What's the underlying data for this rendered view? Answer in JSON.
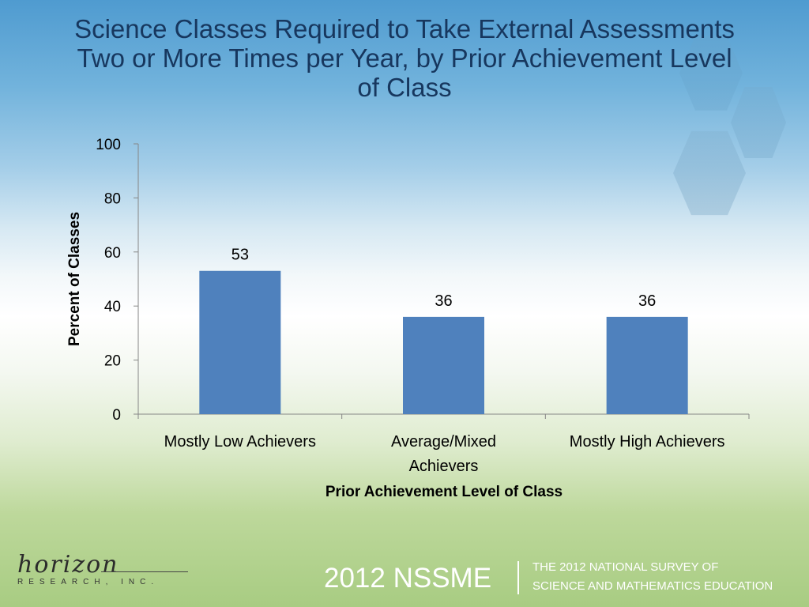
{
  "title_lines": [
    "Science Classes Required to Take External Assessments",
    "Two or More Times per Year, by Prior Achievement Level",
    "of Class"
  ],
  "chart_data": {
    "type": "bar",
    "title": "Science Classes Required to Take External Assessments Two or More Times per Year, by Prior Achievement Level of Class",
    "categories": [
      [
        "Mostly Low Achievers"
      ],
      [
        "Average/Mixed",
        "Achievers"
      ],
      [
        "Mostly High Achievers"
      ]
    ],
    "values": [
      53,
      36,
      36
    ],
    "data_labels": [
      "53",
      "36",
      "36"
    ],
    "xlabel": "Prior Achievement Level of Class",
    "ylabel": "Percent of Classes",
    "ylim": [
      0,
      100
    ],
    "yticks": [
      0,
      20,
      40,
      60,
      80,
      100
    ],
    "grid": false,
    "bar_color": "#4f81bd",
    "axis_color": "#868686"
  },
  "footer": {
    "logo_script": "horizon",
    "logo_sub": "RESEARCH, INC.",
    "nssme": "2012 NSSME",
    "survey_line1": "THE 2012 NATIONAL SURVEY OF",
    "survey_line2": "SCIENCE AND MATHEMATICS EDUCATION"
  }
}
